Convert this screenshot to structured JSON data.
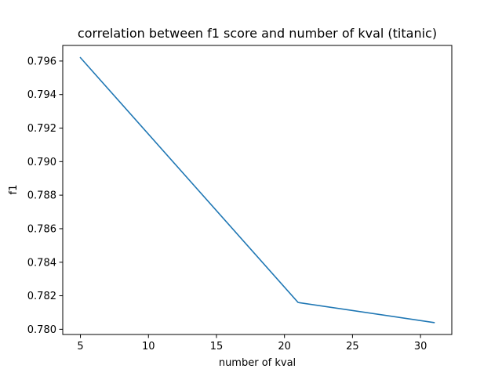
{
  "chart_data": {
    "type": "line",
    "title": "correlation between f1 score and number of kval (titanic)",
    "xlabel": "number of kval",
    "ylabel": "f1",
    "x": [
      5,
      21,
      31
    ],
    "series": [
      {
        "values": [
          0.7962,
          0.7816,
          0.7804
        ],
        "color": "#1f77b4"
      }
    ],
    "xlim": [
      3.7,
      32.3
    ],
    "ylim": [
      0.77969,
      0.79693
    ],
    "xticks": [
      5,
      10,
      15,
      20,
      25,
      30
    ],
    "yticks": [
      0.78,
      0.782,
      0.784,
      0.786,
      0.788,
      0.79,
      0.792,
      0.794,
      0.796
    ],
    "xtick_labels": [
      "5",
      "10",
      "15",
      "20",
      "25",
      "30"
    ],
    "ytick_labels": [
      "0.780",
      "0.782",
      "0.784",
      "0.786",
      "0.788",
      "0.790",
      "0.792",
      "0.794",
      "0.796"
    ],
    "grid": false,
    "legend": false
  }
}
